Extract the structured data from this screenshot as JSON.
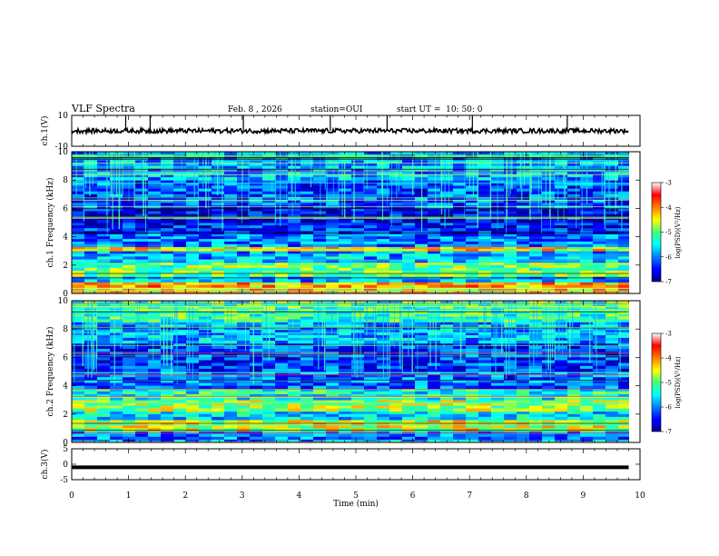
{
  "header": {
    "title": "VLF Spectra",
    "date": "Feb. 8 , 2026",
    "station": "station=OUI",
    "start": "start UT =  10: 50: 0"
  },
  "chart_data": {
    "type": "heatmap",
    "title": "VLF Spectra",
    "xlabel": "Time (min)",
    "xlim": [
      0,
      10
    ],
    "xticks": [
      "0",
      "1",
      "2",
      "3",
      "4",
      "5",
      "6",
      "7",
      "8",
      "9",
      "10"
    ],
    "data_end_min": 9.8,
    "panels": [
      {
        "id": "ch1-waveform",
        "type": "line",
        "ylabel": "ch.1(V)",
        "ylim": [
          -10,
          10
        ],
        "yticks": [
          "10",
          "-10"
        ],
        "baseline_V": 0,
        "noise_amplitude_V": 1.5,
        "spikes_min": [
          0.95,
          1.38,
          3.02,
          4.55,
          5.55,
          7.05,
          8.72
        ]
      },
      {
        "id": "ch1-spectrogram",
        "type": "heatmap",
        "ylabel": "ch.1 Frequency (kHz)",
        "ylim": [
          0,
          10
        ],
        "yticks": [
          "0",
          "2",
          "4",
          "6",
          "8",
          "10"
        ],
        "bands_khz": [
          {
            "lo": 0.0,
            "hi": 0.2,
            "level": -4.6
          },
          {
            "lo": 0.2,
            "hi": 0.8,
            "level": -4.2
          },
          {
            "lo": 0.8,
            "hi": 1.2,
            "level": -5.8
          },
          {
            "lo": 1.2,
            "hi": 2.2,
            "level": -5.0
          },
          {
            "lo": 2.2,
            "hi": 3.0,
            "level": -5.8
          },
          {
            "lo": 3.0,
            "hi": 3.3,
            "level": -4.4
          },
          {
            "lo": 3.3,
            "hi": 4.2,
            "level": -6.0
          },
          {
            "lo": 4.2,
            "hi": 5.0,
            "level": -6.4
          },
          {
            "lo": 5.0,
            "hi": 6.0,
            "level": -6.6
          },
          {
            "lo": 6.0,
            "hi": 8.0,
            "level": -6.2
          },
          {
            "lo": 8.0,
            "hi": 10.0,
            "level": -5.8
          }
        ],
        "colorbar": {
          "label": "log(PSD)(V²/Hz)",
          "range": [
            -7,
            -3
          ],
          "ticks": [
            "-3",
            "-4",
            "-5",
            "-6",
            "-7"
          ]
        }
      },
      {
        "id": "ch2-spectrogram",
        "type": "heatmap",
        "ylabel": "ch.2 Frequency (kHz)",
        "ylim": [
          0,
          10
        ],
        "yticks": [
          "0",
          "2",
          "4",
          "6",
          "8",
          "10"
        ],
        "bands_khz": [
          {
            "lo": 0.0,
            "hi": 0.8,
            "level": -6.0
          },
          {
            "lo": 0.8,
            "hi": 1.6,
            "level": -4.6
          },
          {
            "lo": 1.6,
            "hi": 2.2,
            "level": -5.6
          },
          {
            "lo": 2.2,
            "hi": 3.0,
            "level": -4.8
          },
          {
            "lo": 3.0,
            "hi": 3.8,
            "level": -5.4
          },
          {
            "lo": 3.8,
            "hi": 5.0,
            "level": -6.1
          },
          {
            "lo": 5.0,
            "hi": 7.0,
            "level": -6.3
          },
          {
            "lo": 7.0,
            "hi": 8.5,
            "level": -5.8
          },
          {
            "lo": 8.5,
            "hi": 10.0,
            "level": -5.2
          }
        ],
        "colorbar": {
          "label": "log(PSD)(V²/Hz)",
          "range": [
            -7,
            -3
          ],
          "ticks": [
            "-3",
            "-4",
            "-5",
            "-6",
            "-7"
          ]
        }
      },
      {
        "id": "ch3-waveform",
        "type": "line",
        "ylabel": "ch.3(V)",
        "ylim": [
          -5,
          5
        ],
        "yticks": [
          "5",
          "0",
          "-5"
        ],
        "baseline_V": -1.0
      }
    ]
  }
}
